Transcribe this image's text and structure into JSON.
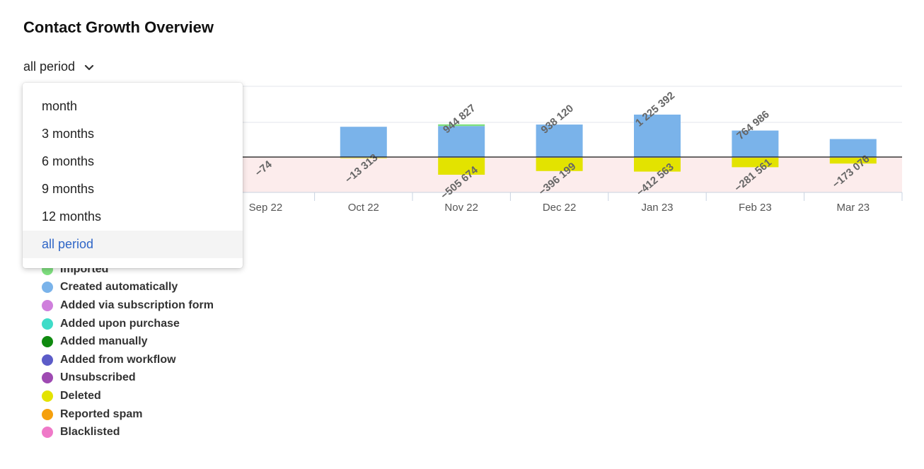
{
  "page": {
    "title": "Contact Growth Overview"
  },
  "period_select": {
    "value": "all period",
    "options": [
      "month",
      "3 months",
      "6 months",
      "9 months",
      "12 months",
      "all period"
    ],
    "selected_index": 5
  },
  "colors": {
    "imported": "#7fe07f",
    "created_automatically": "#7ab3ea",
    "deleted": "#e3e300",
    "negative_band": "#fcecec",
    "selected_option": "#2f66c7"
  },
  "chart_data": {
    "type": "bar",
    "categories": [
      "Sep 22",
      "Oct 22",
      "Nov 22",
      "Dec 22",
      "Jan 23",
      "Feb 23",
      "Mar 23"
    ],
    "series": [
      {
        "name": "Imported",
        "values": [
          0,
          0,
          50000,
          0,
          0,
          0,
          0
        ]
      },
      {
        "name": "Created automatically",
        "values": [
          0,
          874000,
          894827,
          938120,
          1225392,
          764986,
          520000
        ]
      },
      {
        "name": "Deleted",
        "values": [
          -74,
          -13313,
          -505674,
          -396199,
          -412563,
          -281561,
          -173076
        ]
      }
    ],
    "positive_labels": [
      "",
      "",
      "944 827",
      "938 120",
      "1 225 392",
      "764 986",
      ""
    ],
    "negative_labels": [
      "−74",
      "−13 313",
      "−505 674",
      "−396 199",
      "−412 563",
      "−281 561",
      "−173 076"
    ],
    "grid": true,
    "ylim": [
      -1100000,
      2100000
    ]
  },
  "legend": [
    {
      "label": "Imported",
      "color": "#7fe07f"
    },
    {
      "label": "Created automatically",
      "color": "#7ab3ea"
    },
    {
      "label": "Added via subscription form",
      "color": "#cf7fdc"
    },
    {
      "label": "Added upon purchase",
      "color": "#3fdcc8"
    },
    {
      "label": "Added manually",
      "color": "#0f8a0f"
    },
    {
      "label": "Added from workflow",
      "color": "#5c5cc8"
    },
    {
      "label": "Unsubscribed",
      "color": "#9e4ab2"
    },
    {
      "label": "Deleted",
      "color": "#e3e300"
    },
    {
      "label": "Reported spam",
      "color": "#f5a00d"
    },
    {
      "label": "Blacklisted",
      "color": "#ef79c8"
    }
  ]
}
